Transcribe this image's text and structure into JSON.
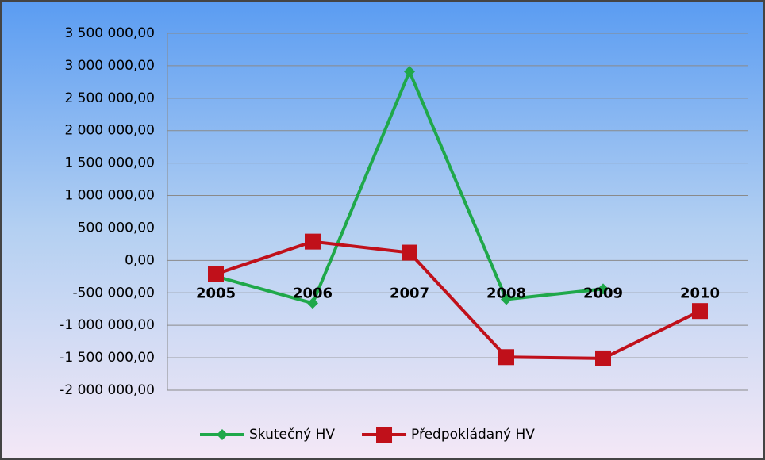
{
  "chart_data": {
    "type": "line",
    "categories": [
      "2005",
      "2006",
      "2007",
      "2008",
      "2009",
      "2010"
    ],
    "series": [
      {
        "name": "Skutečný HV",
        "color": "#1fa84a",
        "marker": "diamond",
        "values": [
          -245000,
          -660000,
          2910000,
          -600000,
          -440000,
          null
        ]
      },
      {
        "name": "Předpokládaný HV",
        "color": "#c0101a",
        "marker": "square",
        "values": [
          -210000,
          290000,
          120000,
          -1490000,
          -1510000,
          -780000
        ]
      }
    ],
    "ylim": [
      -2000000,
      3500000
    ],
    "yticks": [
      {
        "value": -2000000,
        "label": "-2 000 000,00"
      },
      {
        "value": -1500000,
        "label": "-1 500 000,00"
      },
      {
        "value": -1000000,
        "label": "-1 000 000,00"
      },
      {
        "value": -500000,
        "label": "-500 000,00"
      },
      {
        "value": 0,
        "label": "0,00"
      },
      {
        "value": 500000,
        "label": "500 000,00"
      },
      {
        "value": 1000000,
        "label": "1 000 000,00"
      },
      {
        "value": 1500000,
        "label": "1 500 000,00"
      },
      {
        "value": 2000000,
        "label": "2 000 000,00"
      },
      {
        "value": 2500000,
        "label": "2 500 000,00"
      },
      {
        "value": 3000000,
        "label": "3 000 000,00"
      },
      {
        "value": 3500000,
        "label": "3 500 000,00"
      }
    ],
    "grid": true,
    "legend": "bottom"
  }
}
